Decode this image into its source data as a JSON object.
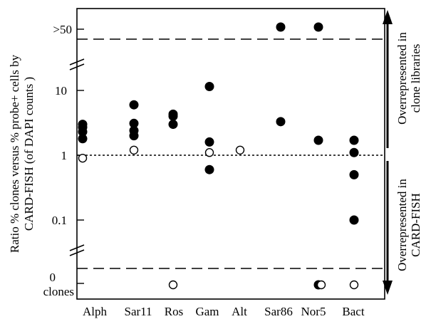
{
  "chart_data": {
    "type": "scatter",
    "categories": [
      "Alph",
      "Sar11",
      "Ros",
      "Gam",
      "Alt",
      "Sar86",
      "Nor5",
      "Bact"
    ],
    "y_scale": "log",
    "y_ticks": [
      {
        "value": 0.1,
        "label": "0.1"
      },
      {
        "value": 1,
        "label": "1"
      },
      {
        "value": 10,
        "label": "10"
      }
    ],
    "y_special_labels": {
      "top": ">50",
      "bottom_line1": "0",
      "bottom_line2": "clones"
    },
    "ylabel": [
      "Ratio % clones versus % probe+ cells by",
      "CARD-FISH (of DAPI counts )"
    ],
    "reference_line": 1,
    "side_labels": {
      "top": [
        "Overrepresented in",
        "clone libraries"
      ],
      "bottom": [
        "Overrepresented in",
        "CARD-FISH"
      ]
    },
    "series": [
      {
        "marker": "filled-circle",
        "points": [
          {
            "x": "Alph",
            "y": 3.0
          },
          {
            "x": "Alph",
            "y": 2.7
          },
          {
            "x": "Alph",
            "y": 2.3
          },
          {
            "x": "Alph",
            "y": 1.8
          },
          {
            "x": "Sar11",
            "y": 6.0
          },
          {
            "x": "Sar11",
            "y": 3.1
          },
          {
            "x": "Sar11",
            "y": 2.4
          },
          {
            "x": "Sar11",
            "y": 2.0
          },
          {
            "x": "Ros",
            "y": 4.3
          },
          {
            "x": "Ros",
            "y": 4.0
          },
          {
            "x": "Ros",
            "y": 3.0
          },
          {
            "x": "Gam",
            "y": 11.5
          },
          {
            "x": "Gam",
            "y": 1.6
          },
          {
            "x": "Gam",
            "y": 0.6
          },
          {
            "x": "Sar86",
            "y": ">50"
          },
          {
            "x": "Sar86",
            "y": 3.3
          },
          {
            "x": "Nor5",
            "y": ">50"
          },
          {
            "x": "Nor5",
            "y": 1.7
          },
          {
            "x": "Nor5",
            "y": "0 clones"
          },
          {
            "x": "Bact",
            "y": 1.7
          },
          {
            "x": "Bact",
            "y": 1.1
          },
          {
            "x": "Bact",
            "y": 0.5
          },
          {
            "x": "Bact",
            "y": 0.1
          }
        ]
      },
      {
        "marker": "open-circle",
        "points": [
          {
            "x": "Alph",
            "y": 0.9
          },
          {
            "x": "Sar11",
            "y": 1.2
          },
          {
            "x": "Ros",
            "y": "0 clones"
          },
          {
            "x": "Gam",
            "y": 1.1
          },
          {
            "x": "Alt",
            "y": 1.2
          },
          {
            "x": "Nor5",
            "y": "0 clones"
          },
          {
            "x": "Bact",
            "y": "0 clones"
          }
        ]
      }
    ]
  }
}
